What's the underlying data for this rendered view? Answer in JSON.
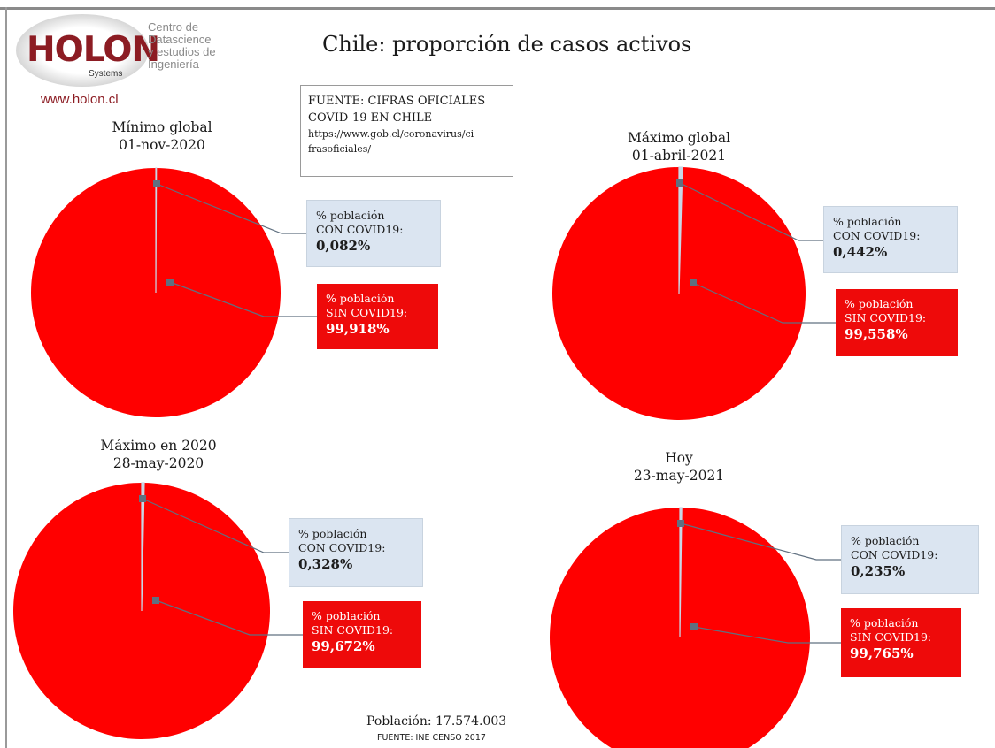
{
  "logo": {
    "word": "HOLON",
    "systems": "Systems",
    "desc_lines": [
      "Centro de",
      "Datascience",
      "y estudios de",
      "Ingeniería"
    ],
    "url": "www.holon.cl"
  },
  "title": "Chile: proporción de casos activos",
  "source_box": {
    "line1": "FUENTE: CIFRAS OFICIALES",
    "line2": "COVID-19 EN CHILE",
    "line3": "https://www.gob.cl/coronavirus/ci",
    "line4": "frasoficiales/"
  },
  "footer": {
    "population": "Población: 17.574.003",
    "source": "FUENTE: INE CENSO 2017"
  },
  "colors": {
    "sin": "#ff0000",
    "con": "#c9d6e6",
    "leader": "#607080"
  },
  "chart_data": [
    {
      "type": "pie",
      "title_line1": "Mínimo global",
      "title_line2": "01-nov-2020",
      "categories": [
        "% población CON COVID19:",
        "% población SIN COVID19:"
      ],
      "values": [
        0.082,
        99.918
      ],
      "value_labels": [
        "0,082%",
        "99,918%"
      ],
      "con_label_lines": [
        "% población",
        "CON COVID19:"
      ],
      "sin_label_lines": [
        "% población",
        "SIN COVID19:"
      ]
    },
    {
      "type": "pie",
      "title_line1": "Máximo global",
      "title_line2": "01-abril-2021",
      "categories": [
        "% población CON COVID19:",
        "% población SIN COVID19:"
      ],
      "values": [
        0.442,
        99.558
      ],
      "value_labels": [
        "0,442%",
        "99,558%"
      ],
      "con_label_lines": [
        "% población",
        "CON COVID19:"
      ],
      "sin_label_lines": [
        "% población",
        "SIN COVID19:"
      ]
    },
    {
      "type": "pie",
      "title_line1": "Máximo en 2020",
      "title_line2": "28-may-2020",
      "categories": [
        "% población CON COVID19:",
        "% población SIN COVID19:"
      ],
      "values": [
        0.328,
        99.672
      ],
      "value_labels": [
        "0,328%",
        "99,672%"
      ],
      "con_label_lines": [
        "% población",
        "CON COVID19:"
      ],
      "sin_label_lines": [
        "% población",
        "SIN COVID19:"
      ]
    },
    {
      "type": "pie",
      "title_line1": "Hoy",
      "title_line2": "23-may-2021",
      "categories": [
        "% población CON COVID19:",
        "% población SIN COVID19:"
      ],
      "values": [
        0.235,
        99.765
      ],
      "value_labels": [
        "0,235%",
        "99,765%"
      ],
      "con_label_lines": [
        "% población",
        "CON COVID19:"
      ],
      "sin_label_lines": [
        "% población",
        "SIN COVID19:"
      ]
    }
  ]
}
